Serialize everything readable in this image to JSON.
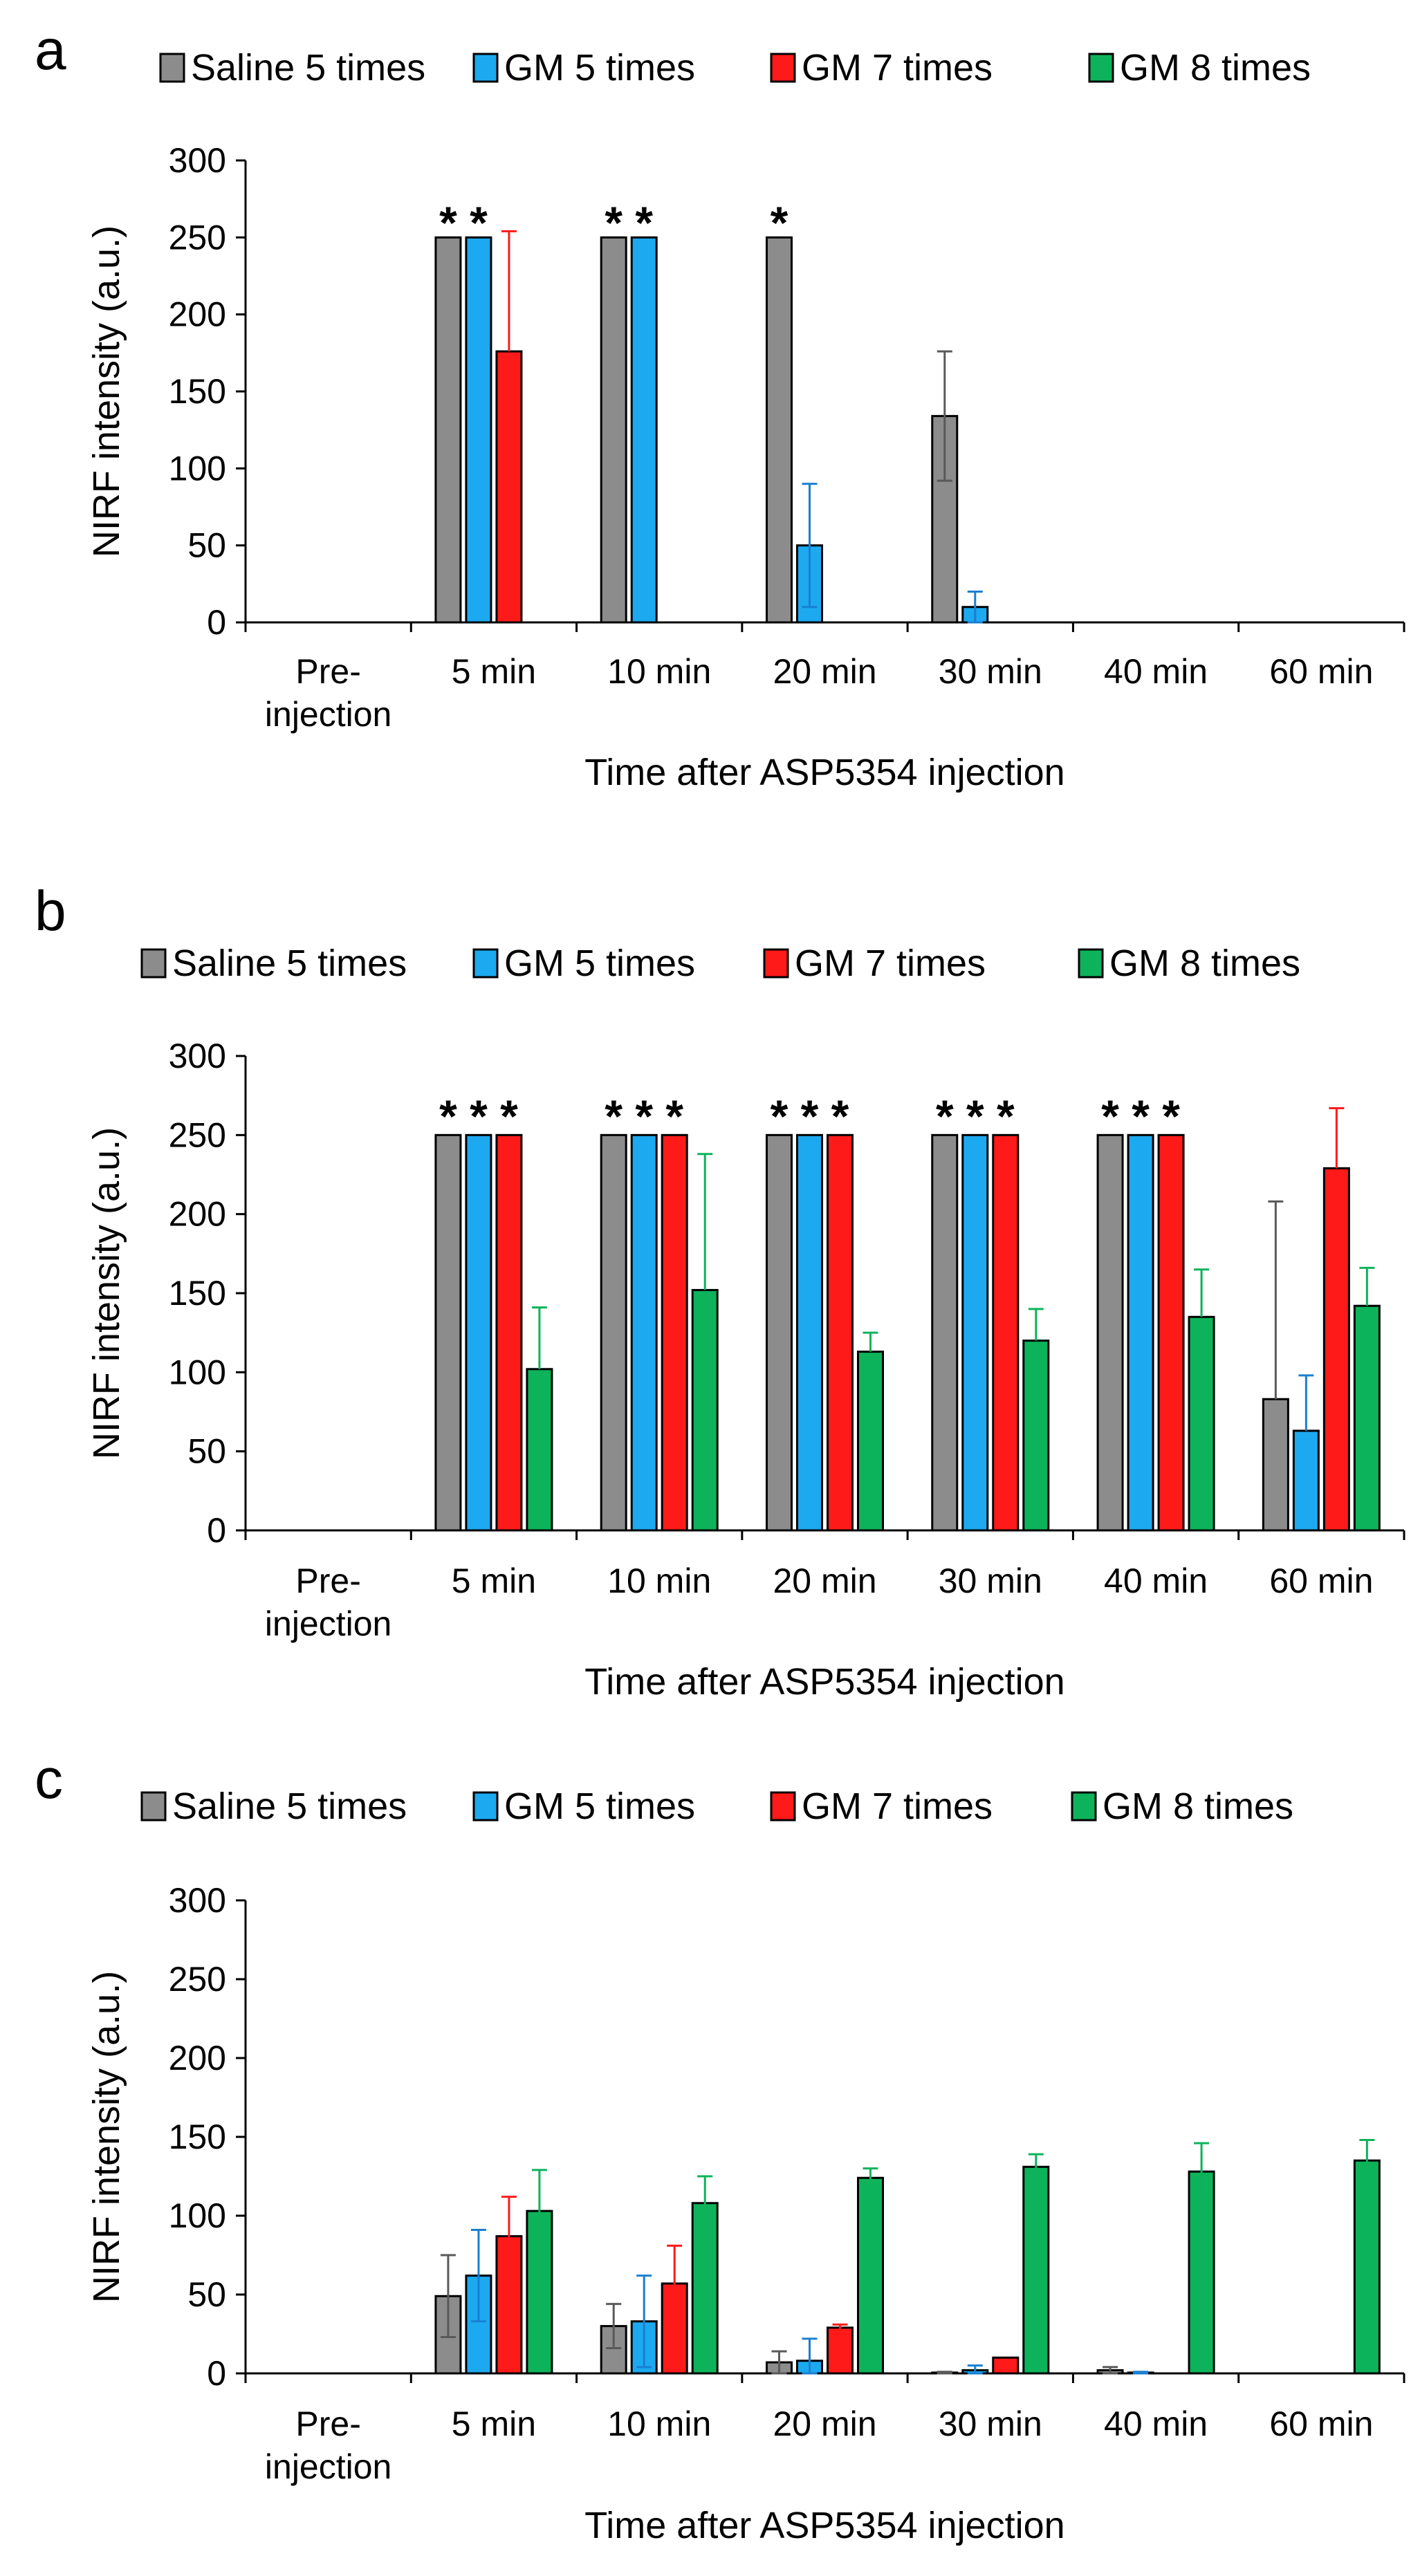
{
  "chart_data": [
    {
      "panel": "a",
      "type": "bar",
      "legend": [
        "Saline 5 times",
        "GM 5 times",
        "GM 7 times",
        "GM 8 times"
      ],
      "categories": [
        [
          "Pre-",
          "injection"
        ],
        [
          "5 min"
        ],
        [
          "10 min"
        ],
        [
          "20 min"
        ],
        [
          "30 min"
        ],
        [
          "40 min"
        ],
        [
          "60 min"
        ]
      ],
      "xlabel": "Time after ASP5354 injection",
      "ylabel": "NIRF intensity (a.u.)",
      "ylim": [
        0,
        300
      ],
      "yticks": [
        0,
        50,
        100,
        150,
        200,
        250,
        300
      ],
      "series": [
        {
          "name": "Saline 5 times",
          "values": [
            0,
            250,
            250,
            250,
            134,
            0,
            0
          ],
          "errors": [
            0,
            0,
            0,
            0,
            42,
            0,
            0
          ],
          "error_mode": "both"
        },
        {
          "name": "GM 5 times",
          "values": [
            0,
            250,
            250,
            50,
            10,
            0,
            0
          ],
          "errors": [
            0,
            0,
            0,
            40,
            10,
            0,
            0
          ],
          "error_mode": "both"
        },
        {
          "name": "GM 7 times",
          "values": [
            0,
            176,
            0,
            0,
            0,
            0,
            0
          ],
          "errors": [
            0,
            78,
            0,
            0,
            0,
            0,
            0
          ],
          "error_mode": "up"
        },
        {
          "name": "GM 8 times",
          "values": [
            0,
            0,
            0,
            0,
            0,
            0,
            0
          ],
          "errors": [
            0,
            0,
            0,
            0,
            0,
            0,
            0
          ],
          "error_mode": "up"
        }
      ],
      "significance": [
        {
          "series": 0,
          "category": 1,
          "label": "*"
        },
        {
          "series": 1,
          "category": 1,
          "label": "*"
        },
        {
          "series": 0,
          "category": 2,
          "label": "*"
        },
        {
          "series": 1,
          "category": 2,
          "label": "*"
        },
        {
          "series": 0,
          "category": 3,
          "label": "*"
        }
      ]
    },
    {
      "panel": "b",
      "type": "bar",
      "legend": [
        "Saline 5 times",
        "GM 5 times",
        "GM 7 times",
        "GM 8 times"
      ],
      "categories": [
        [
          "Pre-",
          "injection"
        ],
        [
          "5 min"
        ],
        [
          "10 min"
        ],
        [
          "20 min"
        ],
        [
          "30 min"
        ],
        [
          "40 min"
        ],
        [
          "60 min"
        ]
      ],
      "xlabel": "Time after ASP5354 injection",
      "ylabel": "NIRF intensity (a.u.)",
      "ylim": [
        0,
        300
      ],
      "yticks": [
        0,
        50,
        100,
        150,
        200,
        250,
        300
      ],
      "series": [
        {
          "name": "Saline 5 times",
          "values": [
            0,
            250,
            250,
            250,
            250,
            250,
            83
          ],
          "errors": [
            0,
            0,
            0,
            0,
            0,
            0,
            125
          ],
          "error_mode": "up"
        },
        {
          "name": "GM 5 times",
          "values": [
            0,
            250,
            250,
            250,
            250,
            250,
            63
          ],
          "errors": [
            0,
            0,
            0,
            0,
            0,
            0,
            35
          ],
          "error_mode": "up"
        },
        {
          "name": "GM 7 times",
          "values": [
            0,
            250,
            250,
            250,
            250,
            250,
            229
          ],
          "errors": [
            0,
            0,
            0,
            0,
            0,
            0,
            38
          ],
          "error_mode": "up"
        },
        {
          "name": "GM 8 times",
          "values": [
            0,
            102,
            152,
            113,
            120,
            135,
            142
          ],
          "errors": [
            0,
            39,
            86,
            12,
            20,
            30,
            24
          ],
          "error_mode": "up"
        }
      ],
      "significance": [
        {
          "series": 0,
          "category": 1,
          "label": "*"
        },
        {
          "series": 1,
          "category": 1,
          "label": "*"
        },
        {
          "series": 2,
          "category": 1,
          "label": "*"
        },
        {
          "series": 0,
          "category": 2,
          "label": "*"
        },
        {
          "series": 1,
          "category": 2,
          "label": "*"
        },
        {
          "series": 2,
          "category": 2,
          "label": "*"
        },
        {
          "series": 0,
          "category": 3,
          "label": "*"
        },
        {
          "series": 1,
          "category": 3,
          "label": "*"
        },
        {
          "series": 2,
          "category": 3,
          "label": "*"
        },
        {
          "series": 0,
          "category": 4,
          "label": "*"
        },
        {
          "series": 1,
          "category": 4,
          "label": "*"
        },
        {
          "series": 2,
          "category": 4,
          "label": "*"
        },
        {
          "series": 0,
          "category": 5,
          "label": "*"
        },
        {
          "series": 1,
          "category": 5,
          "label": "*"
        },
        {
          "series": 2,
          "category": 5,
          "label": "*"
        }
      ]
    },
    {
      "panel": "c",
      "type": "bar",
      "legend": [
        "Saline 5 times",
        "GM 5 times",
        "GM 7 times",
        "GM 8 times"
      ],
      "categories": [
        [
          "Pre-",
          "injection"
        ],
        [
          "5 min"
        ],
        [
          "10 min"
        ],
        [
          "20 min"
        ],
        [
          "30 min"
        ],
        [
          "40 min"
        ],
        [
          "60 min"
        ]
      ],
      "xlabel": "Time after ASP5354 injection",
      "ylabel": "NIRF intensity (a.u.)",
      "ylim": [
        0,
        300
      ],
      "yticks": [
        0,
        50,
        100,
        150,
        200,
        250,
        300
      ],
      "series": [
        {
          "name": "Saline 5 times",
          "values": [
            0,
            49,
            30,
            7,
            0.5,
            2,
            0
          ],
          "errors": [
            0,
            26,
            14,
            7,
            0.5,
            2,
            0
          ],
          "error_mode": "both"
        },
        {
          "name": "GM 5 times",
          "values": [
            0,
            62,
            33,
            8,
            2,
            0.5,
            0
          ],
          "errors": [
            0,
            29,
            29,
            14,
            3,
            0.5,
            0
          ],
          "error_mode": "both"
        },
        {
          "name": "GM 7 times",
          "values": [
            0,
            87,
            57,
            29,
            10,
            0,
            0
          ],
          "errors": [
            0,
            25,
            24,
            2,
            0,
            0,
            0
          ],
          "error_mode": "both"
        },
        {
          "name": "GM 8 times",
          "values": [
            0,
            103,
            108,
            124,
            131,
            128,
            135
          ],
          "errors": [
            0,
            26,
            17,
            6,
            8,
            18,
            13
          ],
          "error_mode": "both"
        }
      ],
      "significance": []
    }
  ],
  "colors": {
    "series": [
      "#8c8c8c",
      "#1ca9f0",
      "#ff1a1a",
      "#0db35a"
    ],
    "errors": [
      "#595959",
      "#1a7fd1",
      "#ff1a1a",
      "#0db35a"
    ]
  }
}
